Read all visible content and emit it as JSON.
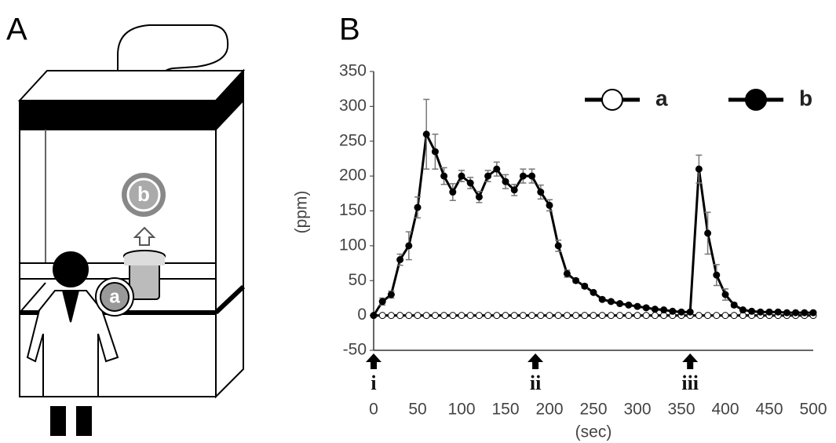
{
  "panel_labels": [
    "A",
    "B"
  ],
  "illustration": {
    "labels": [
      "a",
      "b"
    ]
  },
  "chart_data": {
    "type": "line",
    "x_label": "(sec)",
    "y_label": "(ppm)",
    "x": [
      0,
      10,
      20,
      30,
      40,
      50,
      60,
      70,
      80,
      90,
      100,
      110,
      120,
      130,
      140,
      150,
      160,
      170,
      180,
      190,
      200,
      210,
      220,
      230,
      240,
      250,
      260,
      270,
      280,
      290,
      300,
      310,
      320,
      330,
      340,
      350,
      360,
      370,
      380,
      390,
      400,
      410,
      420,
      430,
      440,
      450,
      460,
      470,
      480,
      490,
      500
    ],
    "series": [
      {
        "name": "a",
        "color": "#ffffff",
        "values": [
          0,
          0,
          0,
          0,
          0,
          0,
          0,
          0,
          0,
          0,
          0,
          0,
          0,
          0,
          0,
          0,
          0,
          0,
          0,
          0,
          0,
          0,
          0,
          0,
          0,
          0,
          0,
          0,
          0,
          0,
          0,
          0,
          0,
          0,
          0,
          0,
          0,
          0,
          0,
          0,
          0,
          0,
          0,
          0,
          0,
          0,
          0,
          0,
          0,
          0,
          0
        ]
      },
      {
        "name": "b",
        "color": "#000000",
        "values": [
          0,
          20,
          30,
          80,
          100,
          155,
          260,
          235,
          200,
          177,
          200,
          190,
          170,
          200,
          210,
          192,
          180,
          200,
          200,
          177,
          158,
          100,
          60,
          50,
          42,
          33,
          23,
          20,
          17,
          15,
          13,
          11,
          9,
          8,
          6,
          5,
          5,
          210,
          118,
          58,
          30,
          15,
          8,
          6,
          5,
          5,
          5,
          4,
          4,
          4,
          4
        ],
        "errors": [
          0,
          5,
          5,
          8,
          20,
          15,
          50,
          25,
          12,
          12,
          8,
          8,
          8,
          8,
          10,
          10,
          8,
          10,
          10,
          10,
          8,
          8,
          5,
          3,
          3,
          2,
          2,
          2,
          2,
          2,
          2,
          2,
          1,
          1,
          1,
          1,
          1,
          20,
          30,
          15,
          8,
          3,
          2,
          1,
          1,
          1,
          1,
          1,
          1,
          1,
          1
        ]
      }
    ],
    "xlim": [
      0,
      500
    ],
    "xticks": [
      0,
      50,
      100,
      150,
      200,
      250,
      300,
      350,
      400,
      450,
      500
    ],
    "ylim": [
      -50,
      350
    ],
    "yticks": [
      -50,
      0,
      50,
      100,
      150,
      200,
      250,
      300,
      350
    ],
    "annotations": [
      {
        "x": 0,
        "label": "i"
      },
      {
        "x": 184,
        "label": "ii"
      },
      {
        "x": 360,
        "label": "iii"
      }
    ],
    "legend": "upper right"
  }
}
